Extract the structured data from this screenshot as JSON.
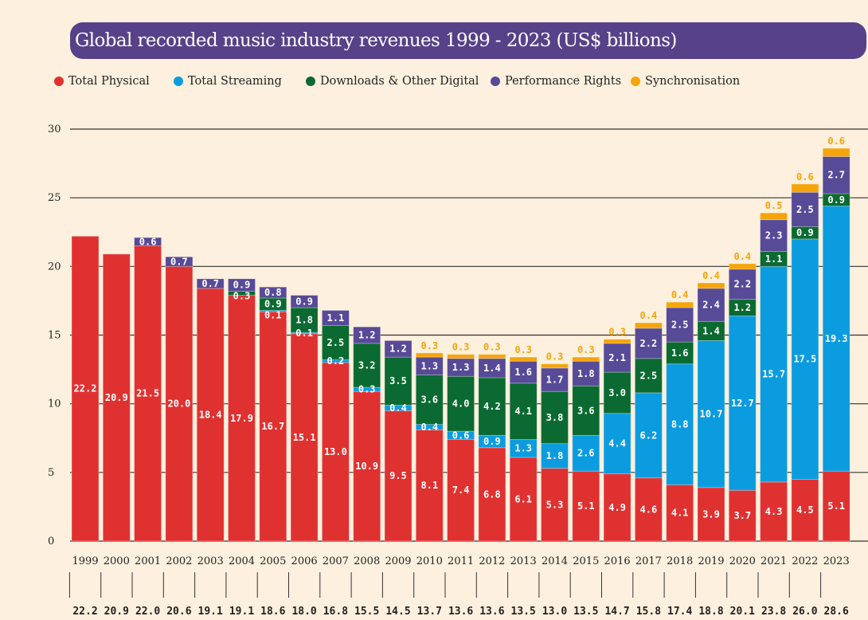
{
  "chart_data": {
    "type": "bar",
    "stacked": true,
    "title": "Global recorded music industry revenues 1999 - 2023 (US$ billions)",
    "xlabel": "",
    "ylabel": "",
    "ylim": [
      0,
      30
    ],
    "yticks": [
      0,
      5,
      10,
      15,
      20,
      25,
      30
    ],
    "grid": true,
    "legend_position": "top",
    "categories": [
      "1999",
      "2000",
      "2001",
      "2002",
      "2003",
      "2004",
      "2005",
      "2006",
      "2007",
      "2008",
      "2009",
      "2010",
      "2011",
      "2012",
      "2013",
      "2014",
      "2015",
      "2016",
      "2017",
      "2018",
      "2019",
      "2020",
      "2021",
      "2022",
      "2023"
    ],
    "series": [
      {
        "name": "Total Physical",
        "color": "#e03131",
        "values": [
          22.2,
          20.9,
          21.5,
          20.0,
          18.4,
          17.9,
          16.7,
          15.1,
          13.0,
          10.9,
          9.5,
          8.1,
          7.4,
          6.8,
          6.1,
          5.3,
          5.1,
          4.9,
          4.6,
          4.1,
          3.9,
          3.7,
          4.3,
          4.5,
          5.1
        ]
      },
      {
        "name": "Total Streaming",
        "color": "#0b9ce0",
        "values": [
          0,
          0,
          0,
          0,
          0,
          0,
          0.1,
          0.1,
          0.2,
          0.3,
          0.4,
          0.4,
          0.6,
          0.9,
          1.3,
          1.8,
          2.6,
          4.4,
          6.2,
          8.8,
          10.7,
          12.7,
          15.7,
          17.5,
          19.3
        ]
      },
      {
        "name": "Downloads & Other Digital",
        "color": "#0b6a31",
        "values": [
          0,
          0,
          0,
          0,
          0,
          0.3,
          0.9,
          1.8,
          2.5,
          3.2,
          3.5,
          3.6,
          4.0,
          4.2,
          4.1,
          3.8,
          3.6,
          3.0,
          2.5,
          1.6,
          1.4,
          1.2,
          1.1,
          0.9,
          0.9
        ]
      },
      {
        "name": "Performance Rights",
        "color": "#574a97",
        "values": [
          0,
          0,
          0.6,
          0.7,
          0.7,
          0.9,
          0.8,
          0.9,
          1.1,
          1.2,
          1.2,
          1.3,
          1.3,
          1.4,
          1.6,
          1.7,
          1.8,
          2.1,
          2.2,
          2.5,
          2.4,
          2.2,
          2.3,
          2.5,
          2.7
        ]
      },
      {
        "name": "Synchronisation",
        "color": "#f5a50a",
        "values": [
          0,
          0,
          0,
          0,
          0,
          0,
          0,
          0,
          0,
          0,
          0,
          0.3,
          0.3,
          0.3,
          0.3,
          0.3,
          0.3,
          0.3,
          0.4,
          0.4,
          0.4,
          0.4,
          0.5,
          0.6,
          0.6
        ]
      }
    ],
    "totals": [
      "22.2",
      "20.9",
      "22.0",
      "20.6",
      "19.1",
      "19.1",
      "18.6",
      "18.0",
      "16.8",
      "15.5",
      "14.5",
      "13.7",
      "13.6",
      "13.6",
      "13.5",
      "13.0",
      "13.5",
      "14.7",
      "15.8",
      "17.4",
      "18.8",
      "20.1",
      "23.8",
      "26.0",
      "28.6"
    ]
  }
}
